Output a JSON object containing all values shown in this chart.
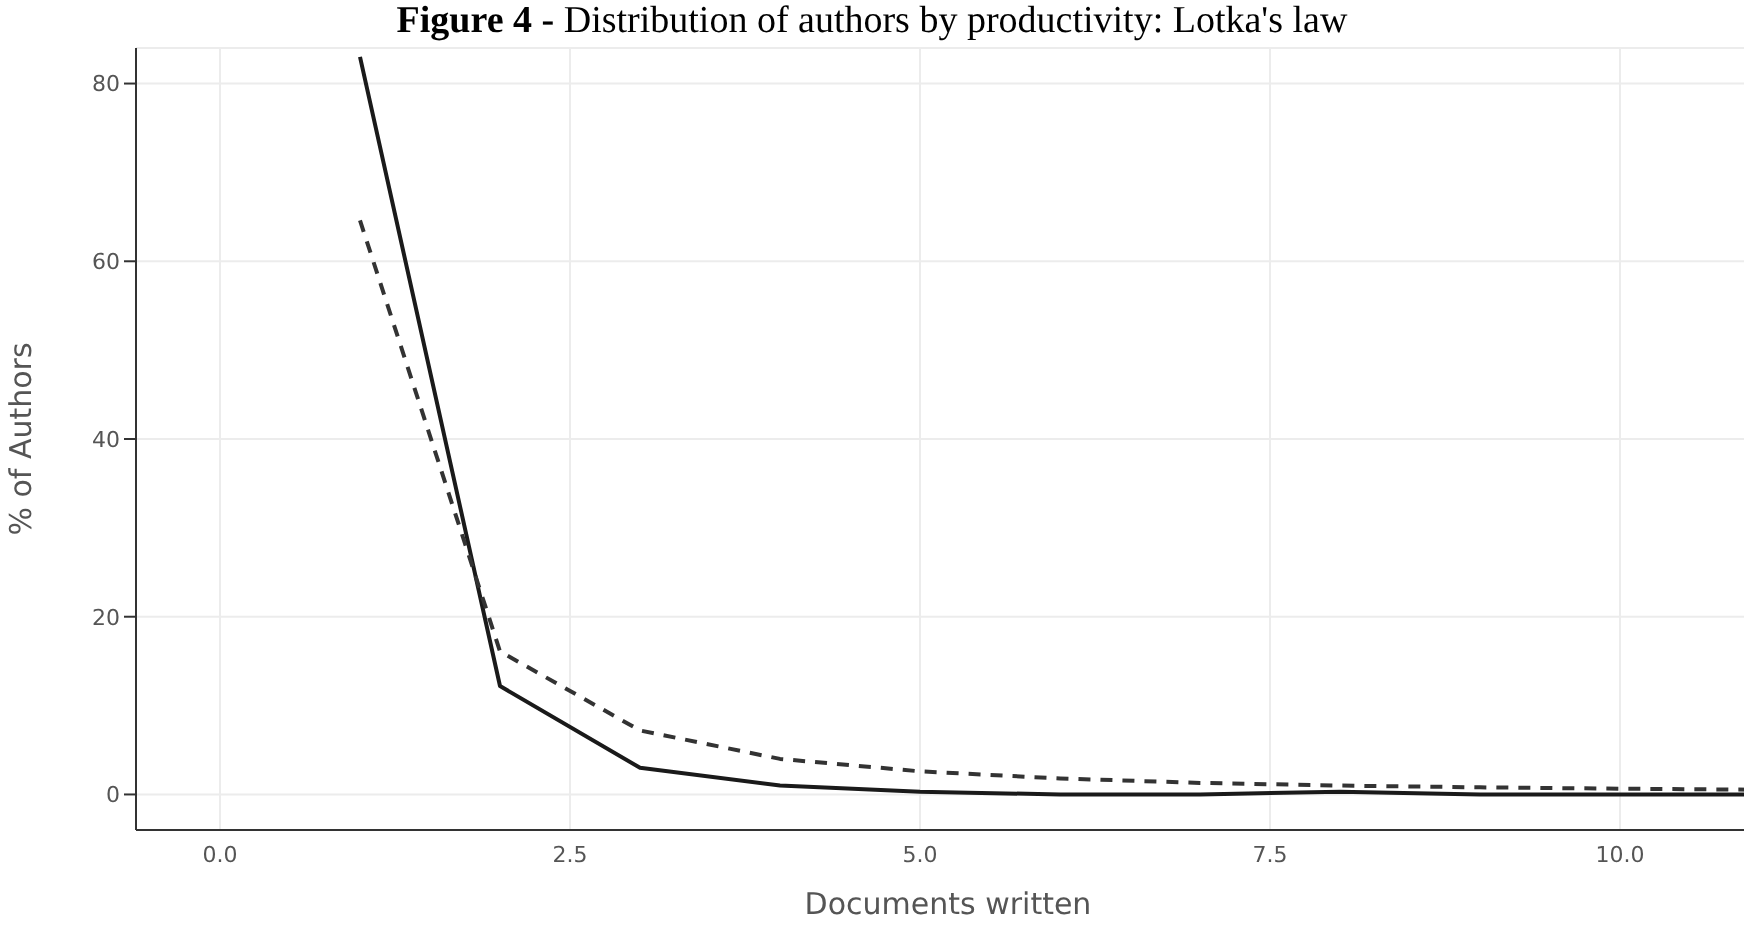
{
  "chart_data": {
    "type": "line",
    "title": "Figure 4 - Distribution of authors by productivity: Lotka's law",
    "xlabel": "Documents written",
    "ylabel": "% of Authors",
    "xlim": [
      -0.6,
      11
    ],
    "xticks": [
      {
        "value": 0,
        "label": "0.0"
      },
      {
        "value": 2.5,
        "label": "2.5"
      },
      {
        "value": 5,
        "label": "5.0"
      },
      {
        "value": 7.5,
        "label": "7.5"
      },
      {
        "value": 10,
        "label": "10.0"
      }
    ],
    "ylim": [
      -4,
      84
    ],
    "yticks": [
      0,
      20,
      40,
      60,
      80
    ],
    "grid": true,
    "marker": "none",
    "x": [
      1,
      2,
      3,
      4,
      5,
      6,
      7,
      8,
      9,
      10,
      11
    ],
    "series": [
      {
        "color": "#1a1a1a",
        "line_style": "solid",
        "values": [
          83,
          12.2,
          3,
          1,
          0.3,
          0,
          0,
          0.3,
          0,
          0,
          0
        ]
      },
      {
        "color": "#333333",
        "line_style": "dashed",
        "values": [
          64.6,
          16.1,
          7.2,
          4,
          2.6,
          1.8,
          1.3,
          1,
          0.8,
          0.65,
          0.53
        ]
      }
    ]
  }
}
